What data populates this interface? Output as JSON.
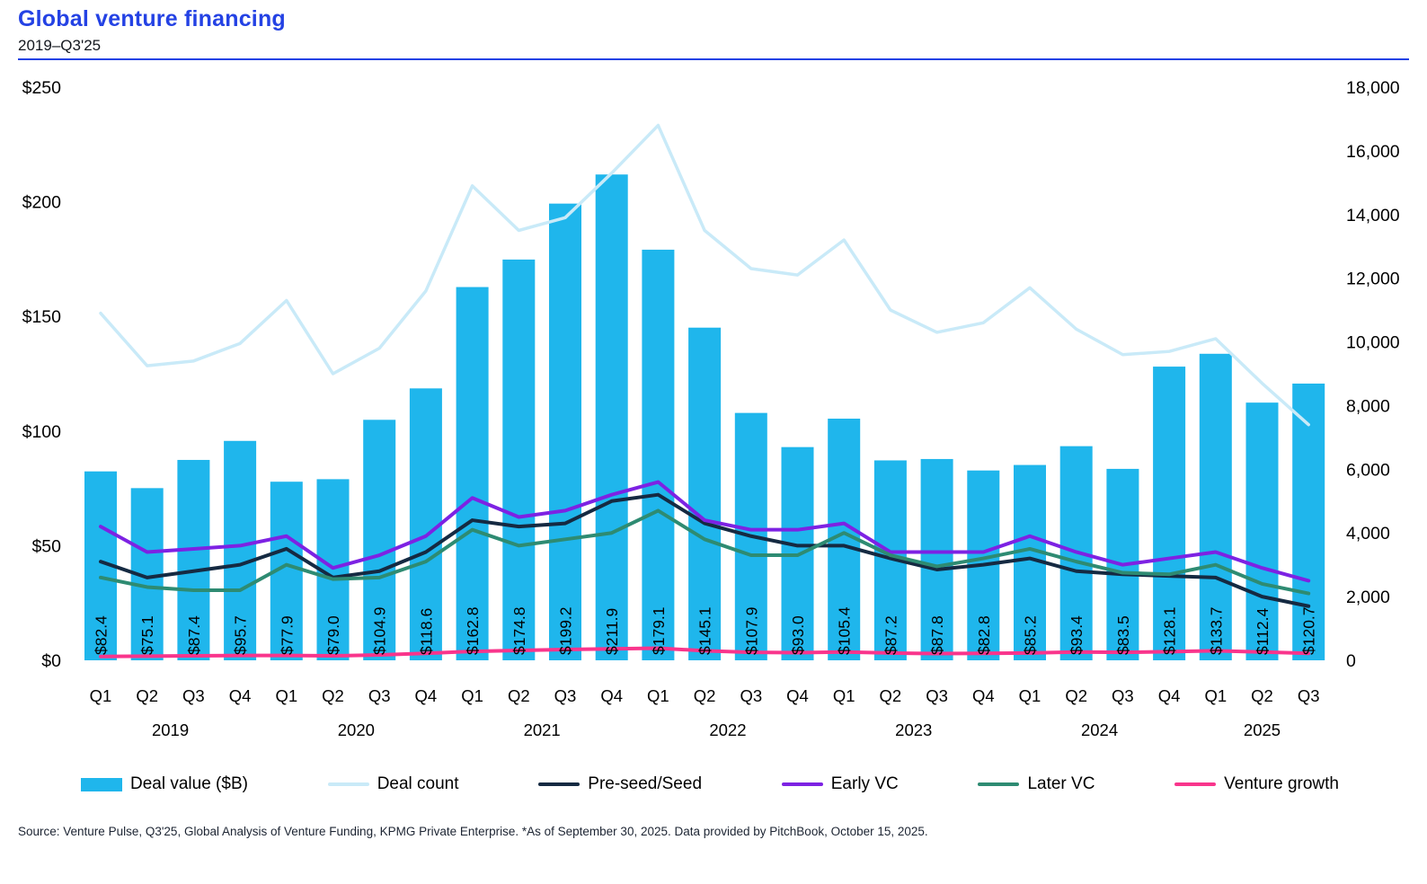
{
  "header": {
    "title": "Global venture financing",
    "subtitle": "2019–Q3'25"
  },
  "source": "Source: Venture Pulse, Q3'25, Global Analysis of Venture Funding, KPMG Private Enterprise. *As of September 30, 2025. Data provided by PitchBook, October 15, 2025.",
  "colors": {
    "title_blue": "#2442e4",
    "rule_blue": "#2442e4",
    "bar_cyan": "#1fb6ec",
    "deal_count_line": "#c9eaf8",
    "pre_seed_line": "#152a42",
    "early_vc_line": "#7d22e3",
    "later_vc_line": "#2e8b72",
    "venture_growth_line": "#f9358c",
    "axis_text": "#000000",
    "source_text": "#1d2533"
  },
  "legend": {
    "items": [
      {
        "label": "Deal value ($B)",
        "type": "bar",
        "color": "#1fb6ec"
      },
      {
        "label": "Deal count",
        "type": "line",
        "color": "#c9eaf8"
      },
      {
        "label": "Pre-seed/Seed",
        "type": "line",
        "color": "#152a42"
      },
      {
        "label": "Early VC",
        "type": "line",
        "color": "#7d22e3"
      },
      {
        "label": "Later VC",
        "type": "line",
        "color": "#2e8b72"
      },
      {
        "label": "Venture growth",
        "type": "line",
        "color": "#f9358c"
      }
    ]
  },
  "chart_data": {
    "type": "bar+line combo",
    "title": "Global venture financing",
    "subtitle": "2019–Q3'25",
    "grid": "off",
    "legend_position": "bottom",
    "quarters": [
      "Q1",
      "Q2",
      "Q3",
      "Q4",
      "Q1",
      "Q2",
      "Q3",
      "Q4",
      "Q1",
      "Q2",
      "Q3",
      "Q4",
      "Q1",
      "Q2",
      "Q3",
      "Q4",
      "Q1",
      "Q2",
      "Q3",
      "Q4",
      "Q1",
      "Q2",
      "Q3",
      "Q4",
      "Q1",
      "Q2",
      "Q3"
    ],
    "years": [
      {
        "label": "2019",
        "count": 4
      },
      {
        "label": "2020",
        "count": 4
      },
      {
        "label": "2021",
        "count": 4
      },
      {
        "label": "2022",
        "count": 4
      },
      {
        "label": "2023",
        "count": 4
      },
      {
        "label": "2024",
        "count": 4
      },
      {
        "label": "2025",
        "count": 3
      }
    ],
    "left_axis": {
      "label": "Deal value ($B)",
      "max": 250,
      "ticks": [
        250,
        200,
        150,
        100,
        50,
        0
      ],
      "tick_prefix": "$"
    },
    "right_axis": {
      "label": "Deal count",
      "max": 18000,
      "ticks": [
        18000,
        16000,
        14000,
        12000,
        10000,
        8000,
        6000,
        4000,
        2000,
        0
      ]
    },
    "series": [
      {
        "name": "Deal value ($B)",
        "type": "bar",
        "axis": "left",
        "color": "#1fb6ec",
        "values": [
          82.4,
          75.1,
          87.4,
          95.7,
          77.9,
          79.0,
          104.9,
          118.6,
          162.8,
          174.8,
          199.2,
          211.9,
          179.1,
          145.1,
          107.9,
          93.0,
          105.4,
          87.2,
          87.8,
          82.8,
          85.2,
          93.4,
          83.5,
          128.1,
          133.7,
          112.4,
          120.7
        ]
      },
      {
        "name": "Deal count",
        "type": "line",
        "axis": "right",
        "color": "#c9eaf8",
        "values": [
          10900,
          9250,
          9400,
          9950,
          11300,
          9000,
          9800,
          11600,
          14900,
          13500,
          13900,
          15300,
          16800,
          13500,
          12300,
          12100,
          13200,
          11000,
          10300,
          10600,
          11700,
          10400,
          9600,
          9700,
          10100,
          8700,
          7400
        ]
      },
      {
        "name": "Pre-seed/Seed",
        "type": "line",
        "axis": "right",
        "color": "#152a42",
        "values": [
          3100,
          2600,
          2800,
          3000,
          3500,
          2600,
          2800,
          3400,
          4400,
          4200,
          4300,
          5000,
          5200,
          4300,
          3900,
          3600,
          3600,
          3200,
          2850,
          3000,
          3200,
          2800,
          2700,
          2650,
          2600,
          2000,
          1700
        ]
      },
      {
        "name": "Early VC",
        "type": "line",
        "axis": "right",
        "color": "#7d22e3",
        "values": [
          4200,
          3400,
          3500,
          3600,
          3900,
          2900,
          3300,
          3900,
          5100,
          4500,
          4700,
          5200,
          5600,
          4400,
          4100,
          4100,
          4300,
          3400,
          3400,
          3400,
          3900,
          3400,
          3000,
          3200,
          3400,
          2900,
          2500
        ]
      },
      {
        "name": "Later VC",
        "type": "line",
        "axis": "right",
        "color": "#2e8b72",
        "values": [
          2600,
          2300,
          2200,
          2200,
          3000,
          2550,
          2600,
          3100,
          4100,
          3600,
          3800,
          4000,
          4700,
          3800,
          3300,
          3300,
          4000,
          3300,
          2950,
          3200,
          3500,
          3100,
          2750,
          2700,
          3000,
          2400,
          2100
        ]
      },
      {
        "name": "Venture growth",
        "type": "line",
        "axis": "right",
        "color": "#f9358c",
        "values": [
          120,
          130,
          140,
          150,
          150,
          140,
          170,
          220,
          280,
          310,
          340,
          360,
          380,
          300,
          250,
          240,
          260,
          230,
          210,
          220,
          230,
          260,
          250,
          270,
          300,
          260,
          220
        ]
      }
    ]
  }
}
